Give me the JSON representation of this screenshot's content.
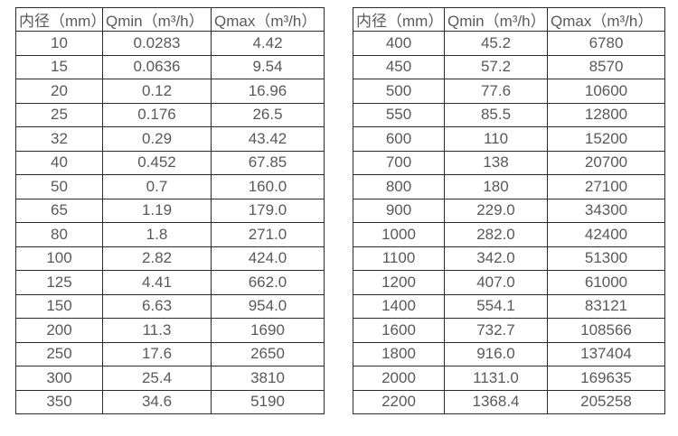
{
  "page": {
    "background_color": "#ffffff",
    "text_color": "#595959",
    "border_color": "#2b2b2b"
  },
  "tables": [
    {
      "name": "small-diameter-flow-table",
      "headers": [
        "内径（mm）",
        "Qmin（m³/h）",
        "Qmax（m³/h）"
      ],
      "rows": [
        [
          "10",
          "0.0283",
          "4.42"
        ],
        [
          "15",
          "0.0636",
          "9.54"
        ],
        [
          "20",
          "0.12",
          "16.96"
        ],
        [
          "25",
          "0.176",
          "26.5"
        ],
        [
          "32",
          "0.29",
          "43.42"
        ],
        [
          "40",
          "0.452",
          "67.85"
        ],
        [
          "50",
          "0.7",
          "160.0"
        ],
        [
          "65",
          "1.19",
          "179.0"
        ],
        [
          "80",
          "1.8",
          "271.0"
        ],
        [
          "100",
          "2.82",
          "424.0"
        ],
        [
          "125",
          "4.41",
          "662.0"
        ],
        [
          "150",
          "6.63",
          "954.0"
        ],
        [
          "200",
          "11.3",
          "1690"
        ],
        [
          "250",
          "17.6",
          "2650"
        ],
        [
          "300",
          "25.4",
          "3810"
        ],
        [
          "350",
          "34.6",
          "5190"
        ]
      ]
    },
    {
      "name": "large-diameter-flow-table",
      "headers": [
        "内径（mm）",
        "Qmin（m³/h）",
        "Qmax（m³/h）"
      ],
      "rows": [
        [
          "400",
          "45.2",
          "6780"
        ],
        [
          "450",
          "57.2",
          "8570"
        ],
        [
          "500",
          "77.6",
          "10600"
        ],
        [
          "550",
          "85.5",
          "12800"
        ],
        [
          "600",
          "110",
          "15200"
        ],
        [
          "700",
          "138",
          "20700"
        ],
        [
          "800",
          "180",
          "27100"
        ],
        [
          "900",
          "229.0",
          "34300"
        ],
        [
          "1000",
          "282.0",
          "42400"
        ],
        [
          "1100",
          "342.0",
          "51300"
        ],
        [
          "1200",
          "407.0",
          "61000"
        ],
        [
          "1400",
          "554.1",
          "83121"
        ],
        [
          "1600",
          "732.7",
          "108566"
        ],
        [
          "1800",
          "916.0",
          "137404"
        ],
        [
          "2000",
          "1131.0",
          "169635"
        ],
        [
          "2200",
          "1368.4",
          "205258"
        ]
      ]
    }
  ]
}
